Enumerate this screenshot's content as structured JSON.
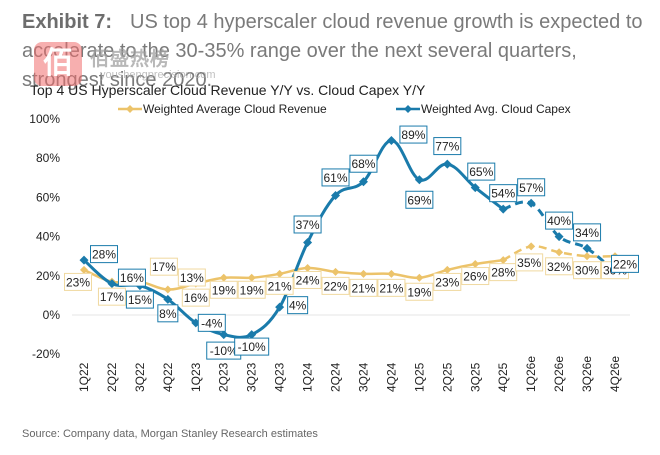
{
  "exhibit": {
    "label": "Exhibit 7:",
    "text": "US top 4 hyperscaler cloud revenue growth is expected to accelerate to the 30-35% range over the next several quarters, strongest since 2020."
  },
  "watermark": {
    "logo_glyph": "佰",
    "text": "佰盛热榜",
    "url": "youshengprecision.com"
  },
  "source": "Source: Company data, Morgan Stanley Research estimates",
  "colors": {
    "revenue": "#ecc36a",
    "capex": "#1a7bab",
    "grid": "#e6e6e6"
  },
  "chart_data": {
    "type": "line",
    "title": "Top 4 US Hyperscaler Cloud Revenue Y/Y vs. Cloud Capex Y/Y",
    "xlabel": "",
    "ylabel": "",
    "ylim": [
      -20,
      100
    ],
    "yticks": [
      -20,
      0,
      20,
      40,
      60,
      80,
      100
    ],
    "ytick_labels": [
      "-20%",
      "0%",
      "20%",
      "40%",
      "60%",
      "80%",
      "100%"
    ],
    "grid": "zero-line only",
    "legend_position": "top",
    "categories": [
      "1Q22",
      "2Q22",
      "3Q22",
      "4Q22",
      "1Q23",
      "2Q23",
      "3Q23",
      "4Q23",
      "1Q24",
      "2Q24",
      "3Q24",
      "4Q24",
      "1Q25",
      "2Q25",
      "3Q25",
      "4Q25",
      "1Q26e",
      "2Q26e",
      "3Q26e",
      "4Q26e"
    ],
    "forecast_start_index": 15,
    "series": [
      {
        "name": "Weighted Average Cloud Revenue",
        "values": [
          23,
          17,
          17,
          13,
          16,
          19,
          19,
          21,
          24,
          22,
          21,
          21,
          19,
          23,
          26,
          28,
          35,
          32,
          30,
          30
        ],
        "labels": [
          "23%",
          "17%",
          "17%",
          "13%",
          "16%",
          "19%",
          "19%",
          "21%",
          "24%",
          "22%",
          "21%",
          "21%",
          "19%",
          "23%",
          "26%",
          "28%",
          "35%",
          "32%",
          "30%",
          "30%"
        ]
      },
      {
        "name": "Weighted Avg. Cloud Capex",
        "values": [
          28,
          16,
          15,
          8,
          -4,
          -10,
          -10,
          4,
          37,
          61,
          68,
          89,
          69,
          77,
          65,
          54,
          57,
          40,
          34,
          22
        ],
        "labels": [
          "28%",
          "16%",
          "15%",
          "8%",
          "-4%",
          "-10%",
          "-10%",
          "4%",
          "37%",
          "61%",
          "68%",
          "89%",
          "69%",
          "77%",
          "65%",
          "54%",
          "57%",
          "40%",
          "34%",
          "22%"
        ]
      }
    ]
  }
}
